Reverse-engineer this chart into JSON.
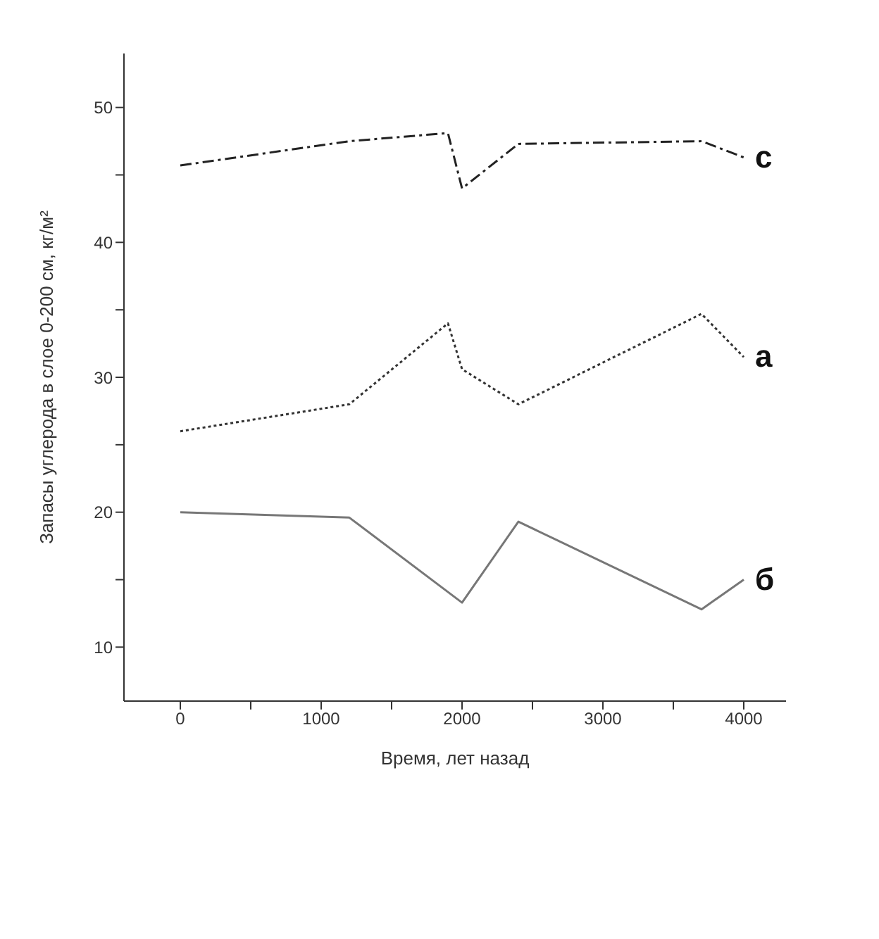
{
  "chart_data": {
    "type": "line",
    "xlabel": "Время, лет назад",
    "ylabel": "Запасы углерода в слое 0-200 см, кг/м²",
    "xlim": [
      -400,
      4300
    ],
    "ylim": [
      6,
      54
    ],
    "xticks": [
      0,
      {
        "value": 500,
        "label": null
      },
      1000,
      {
        "value": 1500,
        "label": null
      },
      2000,
      {
        "value": 2500,
        "label": null
      },
      3000,
      {
        "value": 3500,
        "label": null
      },
      4000
    ],
    "yticks": [
      10,
      {
        "value": 15,
        "label": null
      },
      20,
      {
        "value": 25,
        "label": null
      },
      30,
      {
        "value": 35,
        "label": null
      },
      40,
      {
        "value": 45,
        "label": null
      },
      50
    ],
    "grid": false,
    "legend": false,
    "marker": "none",
    "series": [
      {
        "name": "с",
        "color": "#222222",
        "line_style": "dashed",
        "x": [
          0,
          1200,
          1900,
          2000,
          2400,
          3700,
          4000
        ],
        "values": [
          45.7,
          47.5,
          48.1,
          44.0,
          47.3,
          47.5,
          46.3
        ]
      },
      {
        "name": "а",
        "color": "#333333",
        "line_style": "dotted",
        "x": [
          0,
          1200,
          1900,
          2000,
          2400,
          3700,
          4000
        ],
        "values": [
          26,
          28,
          34,
          30.6,
          28,
          34.7,
          31.5
        ]
      },
      {
        "name": "б",
        "color": "#777777",
        "line_style": "solid",
        "x": [
          0,
          1200,
          2000,
          2400,
          3700,
          4000
        ],
        "values": [
          20,
          19.6,
          13.3,
          19.3,
          12.8,
          15
        ]
      }
    ]
  }
}
